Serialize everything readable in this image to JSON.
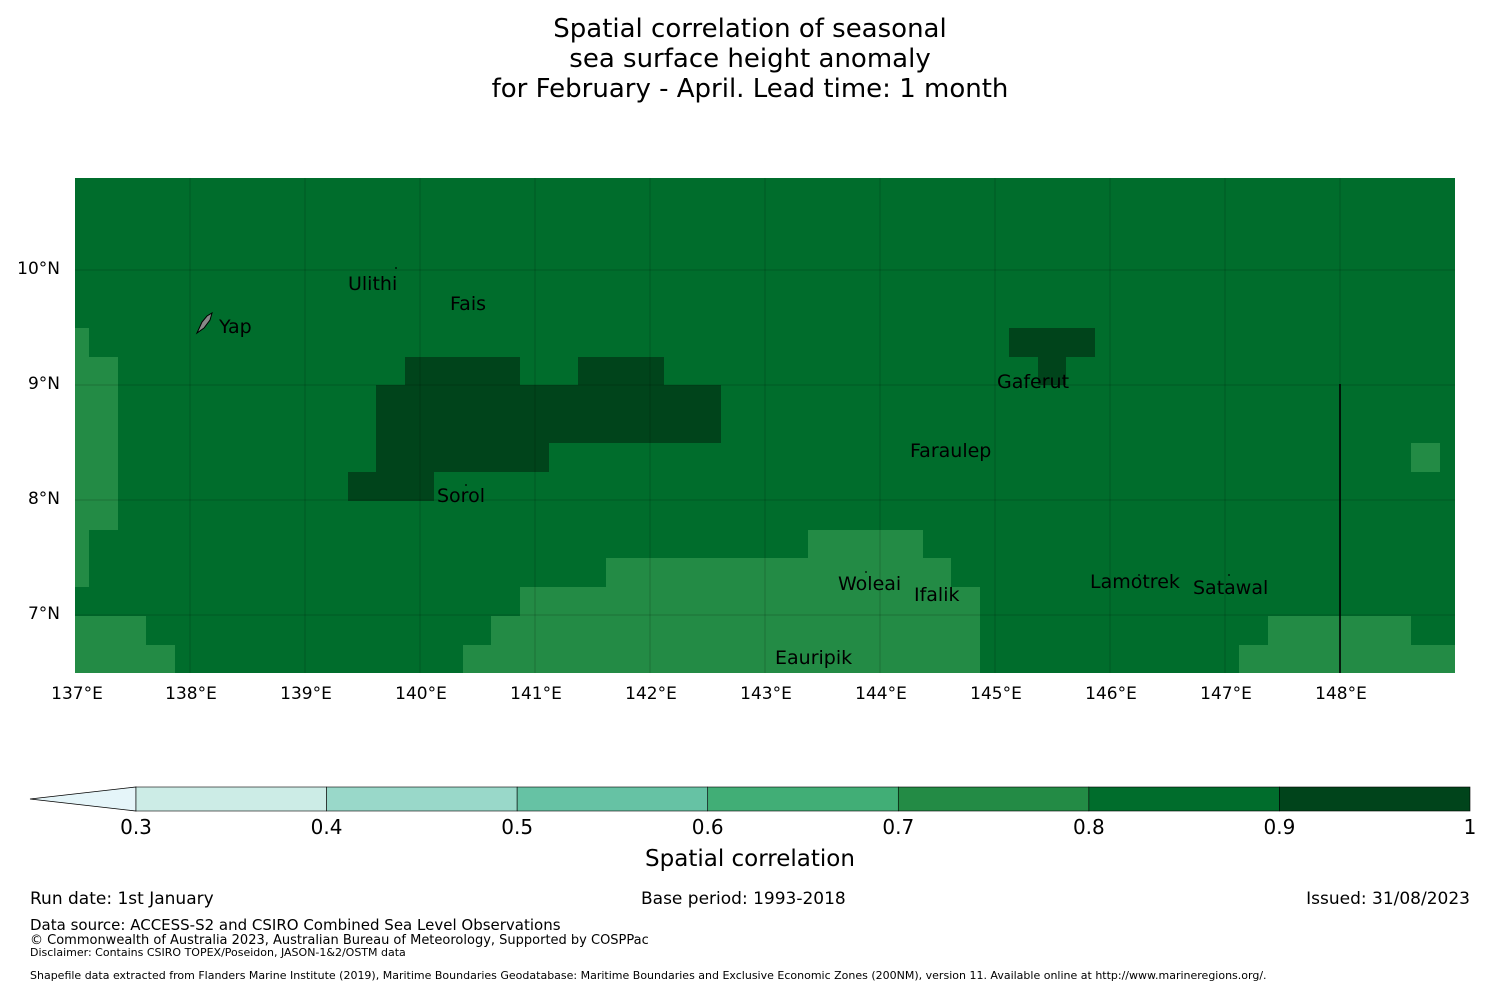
{
  "title": {
    "line1": "Spatial correlation of seasonal",
    "line2": "sea surface height anomaly",
    "line3": "for February - April. Lead time: 1 month"
  },
  "map": {
    "lat_labels": [
      "10°N",
      "9°N",
      "8°N",
      "7°N"
    ],
    "lon_labels": [
      "137°E",
      "138°E",
      "139°E",
      "140°E",
      "141°E",
      "142°E",
      "143°E",
      "144°E",
      "145°E",
      "146°E",
      "147°E",
      "148°E"
    ],
    "places": [
      {
        "name": "Ulithi"
      },
      {
        "name": "Fais"
      },
      {
        "name": "Yap"
      },
      {
        "name": "Gaferut"
      },
      {
        "name": "Faraulep"
      },
      {
        "name": "Sorol"
      },
      {
        "name": "Woleai"
      },
      {
        "name": "Ifalik"
      },
      {
        "name": "Lamotrek"
      },
      {
        "name": "Satawal"
      },
      {
        "name": "Eauripik"
      }
    ],
    "colors": {
      "c08_09": "#006d2c",
      "c07_08": "#238b45",
      "c09_1": "#00441b"
    }
  },
  "colorbar": {
    "title": "Spatial correlation",
    "ticks": [
      "0.3",
      "0.4",
      "0.5",
      "0.6",
      "0.7",
      "0.8",
      "0.9",
      "1"
    ],
    "colors": [
      "#e5f5f9",
      "#ccece6",
      "#99d8c9",
      "#66c2a4",
      "#41ae76",
      "#238b45",
      "#006d2c",
      "#00441b"
    ]
  },
  "footer": {
    "run_date": "Run date: 1st January",
    "base_period": "Base period: 1993-2018",
    "issued": "Issued: 31/08/2023",
    "data_source": "Data source: ACCESS-S2 and CSIRO Combined Sea Level Observations",
    "copyright": "© Commonwealth of Australia 2023, Australian Bureau of Meteorology, Supported by COSPPac",
    "disclaimer": "Disclaimer: Contains CSIRO TOPEX/Poseidon, JASON-1&2/OSTM data",
    "shapefile": "Shapefile data extracted from Flanders Marine Institute (2019), Maritime Boundaries Geodatabase: Maritime Boundaries and Exclusive Economic Zones (200NM), version 11. Available online at http://www.marineregions.org/."
  }
}
